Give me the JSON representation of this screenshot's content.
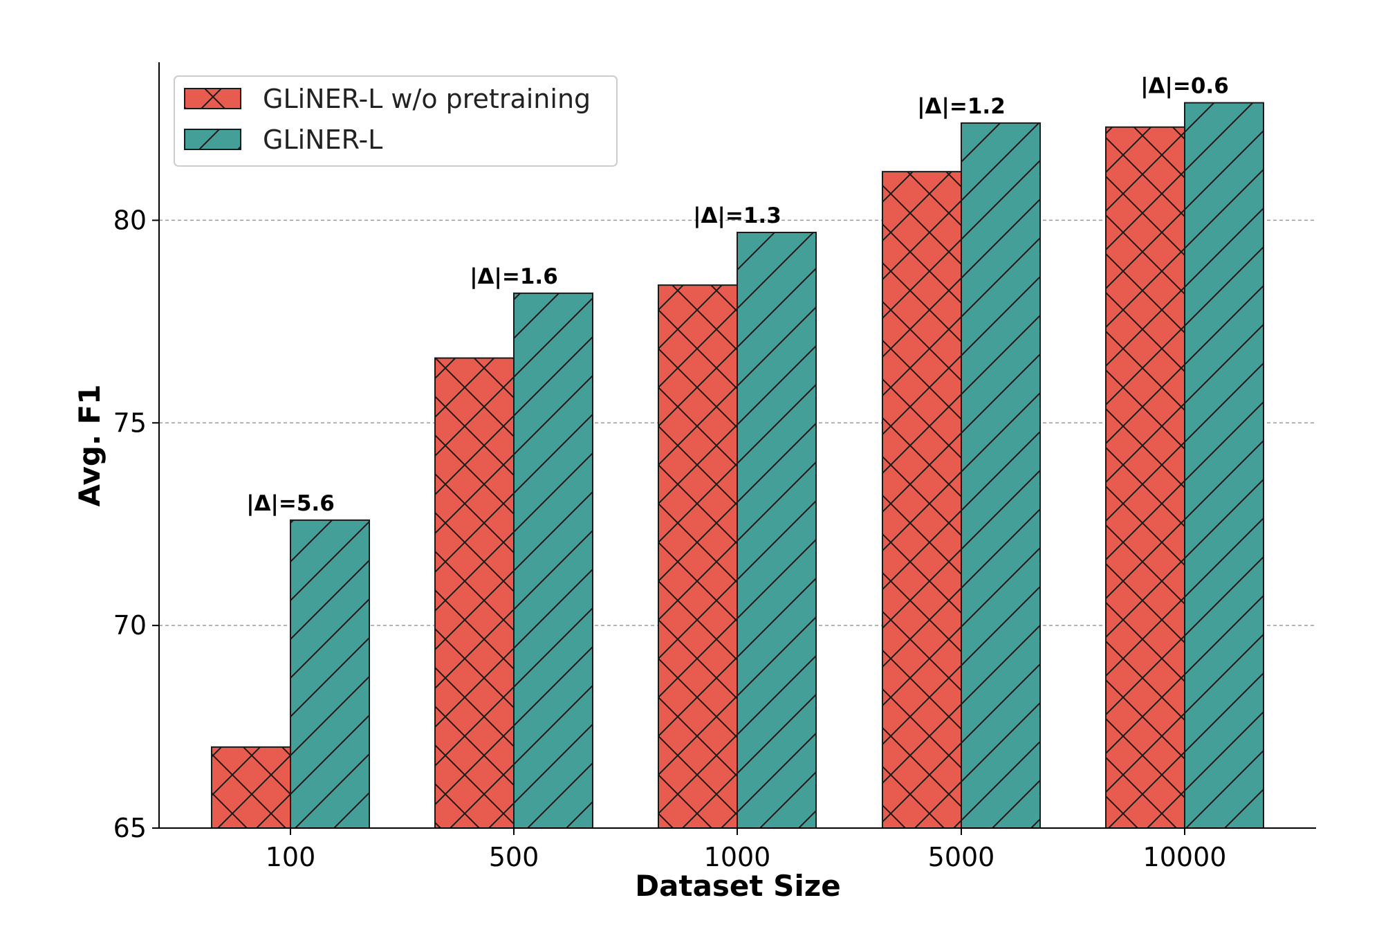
{
  "chart_data": {
    "type": "bar",
    "categories": [
      "100",
      "500",
      "1000",
      "5000",
      "10000"
    ],
    "series": [
      {
        "name": "GLiNER-L w/o pretraining",
        "values": [
          67.0,
          76.6,
          78.4,
          81.2,
          82.3
        ],
        "color": "#e85c50",
        "hatch": "crosshatch"
      },
      {
        "name": "GLiNER-L",
        "values": [
          72.6,
          78.2,
          79.7,
          82.4,
          82.9
        ],
        "color": "#449f98",
        "hatch": "diagonal"
      }
    ],
    "annotations": [
      "|Δ|=5.6",
      "|Δ|=1.6",
      "|Δ|=1.3",
      "|Δ|=1.2",
      "|Δ|=0.6"
    ],
    "xlabel": "Dataset Size",
    "ylabel": "Avg. F1",
    "ylim": [
      65,
      83.9
    ],
    "yticks": [
      65,
      70,
      75,
      80
    ],
    "grid": "horizontal dashed",
    "legend_position": "top-left"
  }
}
